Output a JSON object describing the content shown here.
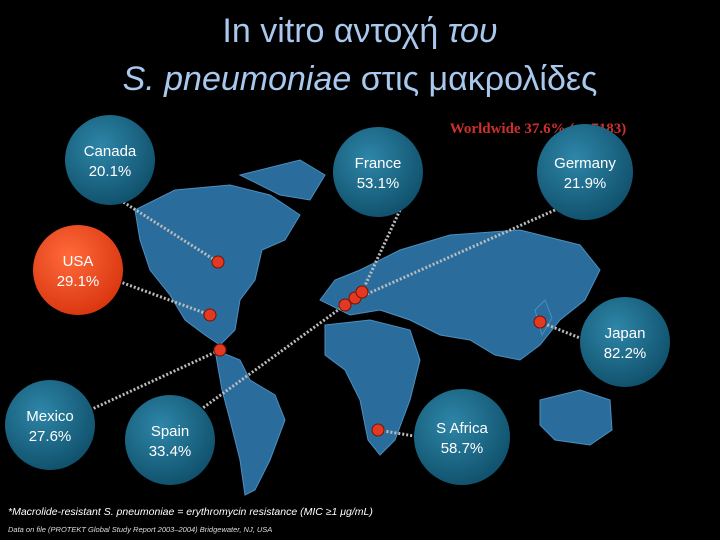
{
  "title": {
    "line1_a": "In vitro  αντοχή",
    "line1_b": "του",
    "line2_a": "S. pneumoniae",
    "line2_b": "στις μακρολίδες"
  },
  "worldwide": "Worldwide 37.6%  (n=7183)",
  "bubbles": [
    {
      "name": "Canada",
      "value": "20.1%"
    },
    {
      "name": "France",
      "value": "53.1%"
    },
    {
      "name": "Germany",
      "value": "21.9%"
    },
    {
      "name": "USA",
      "value": "29.1%"
    },
    {
      "name": "Japan",
      "value": "82.2%"
    },
    {
      "name": "Mexico",
      "value": "27.6%"
    },
    {
      "name": "Spain",
      "value": "33.4%"
    },
    {
      "name": "S Africa",
      "value": "58.7%"
    }
  ],
  "footnote": "*Macrolide-resistant S. pneumoniae = erythromycin resistance (MIC ≥1 μg/mL)",
  "source": "Data on file (PROTEKT Global Study Report 2003–2004) Bridgewater, NJ, USA"
}
